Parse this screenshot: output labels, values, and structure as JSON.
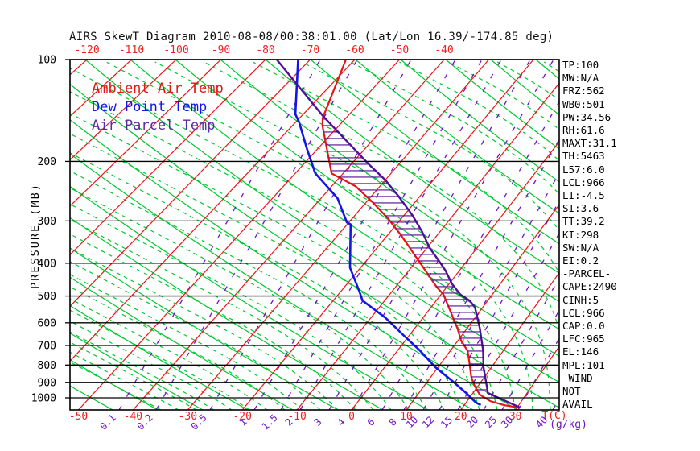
{
  "header": {
    "title": "AIRS SkewT Diagram 2010-08-08/00:38:01.00 (Lat/Lon 16.39/-174.85 deg)"
  },
  "legend": {
    "items": [
      {
        "label": "Ambient Air Temp",
        "color": "#e81414"
      },
      {
        "label": "Dew Point Temp",
        "color": "#1414e8"
      },
      {
        "label": "Air Parcel Temp",
        "color": "#5a2d9e"
      }
    ]
  },
  "stats": [
    "TP:100",
    "MW:N/A",
    "FRZ:562",
    "WB0:501",
    "PW:34.56",
    "RH:61.6",
    "MAXT:31.1",
    "TH:5463",
    "L57:6.0",
    "LCL:966",
    "LI:-4.5",
    "SI:3.6",
    "TT:39.2",
    "KI:298",
    "SW:N/A",
    "EI:0.2",
    "-PARCEL-",
    "CAPE:2490",
    "CINH:5",
    "LCL:966",
    "CAP:0.0",
    "LFC:965",
    "EL:146",
    "MPL:101",
    "-WIND-",
    "NOT",
    "AVAIL"
  ],
  "colors": {
    "isotherm_red": "#e81414",
    "adiabat_green": "#00c832",
    "mixing_purple": "#6e14c8",
    "pressure_black": "#000000",
    "ambient": "#e81414",
    "dewpoint": "#1414e8",
    "parcel": "#4d0f99",
    "hatch": "#550a9b",
    "axis_text_red": "#f02020"
  },
  "chart_data": {
    "type": "line",
    "subtype": "skewt-logp",
    "title": "AIRS SkewT Diagram 2010-08-08/00:38:01.00 (Lat/Lon 16.39/-174.85 deg)",
    "y_axis": {
      "label": "PRESSURE (MB)",
      "ticks_mb": [
        100,
        200,
        300,
        400,
        500,
        600,
        700,
        800,
        900,
        1000
      ],
      "range_mb": [
        100,
        1085
      ],
      "scale": "log"
    },
    "x_axis": {
      "unit_label": "T(C)",
      "top_ticks_c": [
        -120,
        -110,
        -100,
        -90,
        -80,
        -70,
        -60,
        -50,
        -40
      ],
      "bottom_ticks_c": [
        -50,
        -40,
        -30,
        -20,
        -10,
        0,
        10,
        20,
        30
      ]
    },
    "mixing_ratio_axis": {
      "unit_label": "(g/kg)",
      "ticks": [
        [
          0.1,
          137
        ],
        [
          0.2,
          183
        ],
        [
          0.5,
          250
        ],
        [
          1,
          305
        ],
        [
          1.5,
          338
        ],
        [
          2,
          362
        ],
        [
          3,
          398
        ],
        [
          4,
          427
        ],
        [
          6,
          464
        ],
        [
          8,
          491
        ],
        [
          10,
          515
        ],
        [
          12,
          535
        ],
        [
          15,
          558
        ],
        [
          20,
          590
        ],
        [
          25,
          613
        ],
        [
          30,
          633
        ],
        [
          40,
          676
        ]
      ]
    },
    "series": [
      {
        "name": "Ambient Air Temp",
        "color": "#e81414",
        "width": 2.2,
        "points_T_p": [
          [
            -62,
            100
          ],
          [
            -55,
            149
          ],
          [
            -53.5,
            157
          ],
          [
            -42.4,
            217
          ],
          [
            -35,
            237
          ],
          [
            -28.9,
            263
          ],
          [
            -22.9,
            294
          ],
          [
            -17.5,
            329
          ],
          [
            -12.5,
            368
          ],
          [
            -7.6,
            412
          ],
          [
            -2.1,
            469
          ],
          [
            0.5,
            495
          ],
          [
            5.3,
            571
          ],
          [
            8.1,
            622
          ],
          [
            10.6,
            677
          ],
          [
            13.3,
            727
          ],
          [
            15.3,
            789
          ],
          [
            17.5,
            866
          ],
          [
            19.1,
            915
          ],
          [
            21.4,
            977
          ],
          [
            24.2,
            1022
          ],
          [
            27.3,
            1051
          ],
          [
            30.5,
            1070
          ]
        ]
      },
      {
        "name": "Dew Point Temp",
        "color": "#1414e8",
        "width": 2.6,
        "points_T_p": [
          [
            -72.7,
            100
          ],
          [
            -61.7,
            145
          ],
          [
            -59.3,
            153
          ],
          [
            -52.4,
            183
          ],
          [
            -45.8,
            217
          ],
          [
            -38.3,
            249
          ],
          [
            -36.6,
            257
          ],
          [
            -30.4,
            303
          ],
          [
            -29.3,
            307
          ],
          [
            -22.1,
            412
          ],
          [
            -16.2,
            487
          ],
          [
            -14.3,
            516
          ],
          [
            -7.2,
            580
          ],
          [
            -1.2,
            652
          ],
          [
            4.1,
            723
          ],
          [
            9.5,
            812
          ],
          [
            14.5,
            891
          ],
          [
            18.7,
            967
          ],
          [
            21.8,
            1033
          ],
          [
            23,
            1050
          ]
        ]
      },
      {
        "name": "Air Parcel Temp",
        "color": "#4d0f99",
        "width": 2.4,
        "points_T_p": [
          [
            -77.5,
            100
          ],
          [
            -55.3,
            147
          ],
          [
            -36,
            205
          ],
          [
            -30,
            227
          ],
          [
            -24.3,
            254
          ],
          [
            -18.4,
            288
          ],
          [
            -13.7,
            322
          ],
          [
            -9.4,
            361
          ],
          [
            -5.3,
            396
          ],
          [
            -2.8,
            420
          ],
          [
            0.6,
            461
          ],
          [
            3.8,
            495
          ],
          [
            6.5,
            516
          ],
          [
            8.5,
            540
          ],
          [
            12.4,
            622
          ],
          [
            16.1,
            723
          ],
          [
            18.5,
            812
          ],
          [
            22.4,
            953
          ],
          [
            22.7,
            967
          ],
          [
            30.5,
            1068
          ]
        ]
      }
    ],
    "cape_hatch": {
      "between": [
        "Ambient Air Temp",
        "Air Parcel Temp"
      ],
      "p_top_mb": 150,
      "p_bottom_mb": 950,
      "color": "#550a9b"
    }
  }
}
